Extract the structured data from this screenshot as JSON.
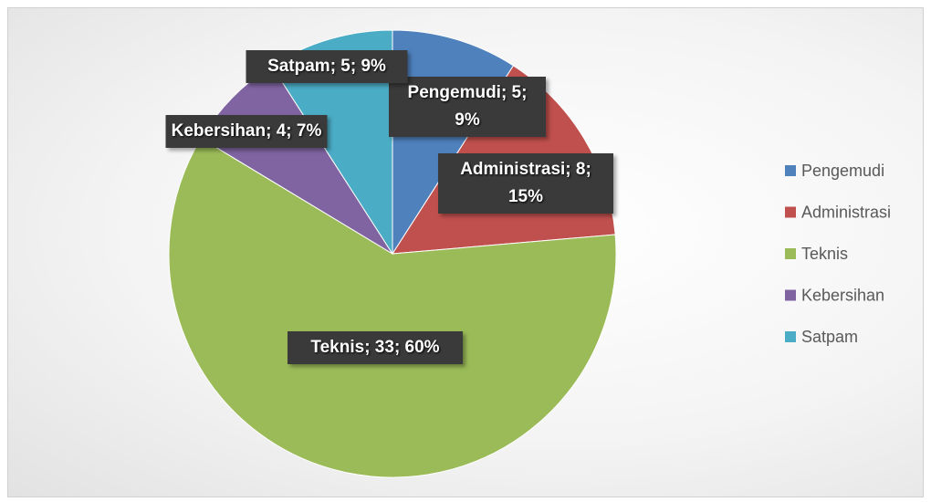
{
  "chart_data": {
    "type": "pie",
    "categories": [
      "Pengemudi",
      "Administrasi",
      "Teknis",
      "Kebersihan",
      "Satpam"
    ],
    "values": [
      5,
      8,
      33,
      4,
      5
    ],
    "value_labels": [
      "Pengemudi; 5; 9%",
      "Administrasi; 8; 15%",
      "Teknis; 33; 60%",
      "Kebersihan; 4; 7%",
      "Satpam; 5; 9%"
    ],
    "colors": [
      "#4f81bd",
      "#c0504d",
      "#9bbb59",
      "#8064a2",
      "#4bacc6"
    ],
    "legend": "right"
  }
}
